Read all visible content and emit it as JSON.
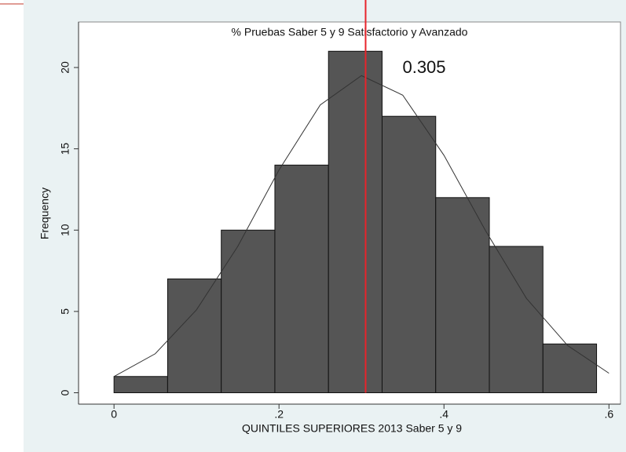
{
  "chart_data": {
    "type": "histogram",
    "title": "% Pruebas Saber 5 y 9 Satisfactorio y Avanzado",
    "x_label": "QUINTILES SUPERIORES 2013 Saber 5 y 9",
    "y_label": "Frequency",
    "bins": [
      0,
      0.065,
      0.13,
      0.195,
      0.26,
      0.325,
      0.39,
      0.455,
      0.52,
      0.585
    ],
    "values": [
      1,
      7,
      10,
      14,
      21,
      17,
      12,
      9,
      3
    ],
    "color": "#555555",
    "curve": {
      "x": [
        0,
        0.05,
        0.1,
        0.15,
        0.2,
        0.25,
        0.3,
        0.35,
        0.4,
        0.45,
        0.5,
        0.55,
        0.6
      ],
      "values": [
        1.0,
        2.4,
        5.1,
        9.0,
        13.7,
        17.7,
        19.5,
        18.3,
        14.6,
        10.0,
        5.8,
        2.9,
        1.2
      ]
    },
    "vline": 0.305,
    "vline_color": "#e8242b",
    "xlim": [
      -0.043,
      0.614
    ],
    "ylim": [
      -0.7,
      22.8
    ],
    "xticks": [
      0,
      {
        "value": 0.2,
        "label": ".2"
      },
      {
        "value": 0.4,
        "label": ".4"
      },
      {
        "value": 0.6,
        "label": ".6"
      }
    ],
    "yticks": [
      0,
      5,
      10,
      15,
      20
    ]
  }
}
